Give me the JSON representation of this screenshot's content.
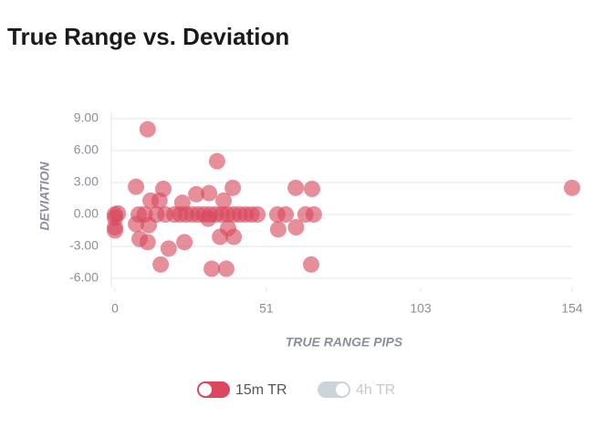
{
  "chart_data": {
    "type": "scatter",
    "title": "True Range vs. Deviation",
    "xlabel": "TRUE RANGE PIPS",
    "ylabel": "DEVIATION",
    "xlim": [
      0,
      154
    ],
    "xticks": [
      0,
      51,
      103,
      154
    ],
    "ylim": [
      -6,
      9
    ],
    "yticks": [
      {
        "value": 9,
        "label": "9.00"
      },
      {
        "value": 6,
        "label": "6.00"
      },
      {
        "value": 3,
        "label": "3.00"
      },
      {
        "value": 0,
        "label": "0.00"
      },
      {
        "value": -3,
        "label": "-3.00"
      },
      {
        "value": -6,
        "label": "-6.00"
      }
    ],
    "grid": true,
    "series": [
      {
        "name": "15m TR",
        "color": "#d9485e",
        "visible": true,
        "x": [
          0,
          0,
          0,
          0,
          1,
          11,
          34.4,
          7.1,
          16.3,
          31.7,
          39.7,
          60.9,
          66.4,
          154,
          27.4,
          36.6,
          12,
          15,
          22.7,
          8,
          10,
          14,
          17,
          20,
          22,
          24,
          26,
          28,
          30,
          32,
          34,
          36,
          38,
          40,
          42,
          44,
          46,
          48,
          54.7,
          57.5,
          64.2,
          67,
          7.1,
          8.3,
          11,
          23.4,
          18.1,
          15.4,
          32.6,
          37.5,
          66.1,
          35.4,
          40,
          55,
          61,
          11.4,
          31.4,
          38.1
        ],
        "values": [
          0,
          -0.3,
          -1.2,
          -1.5,
          0.1,
          8,
          5,
          2.6,
          2.4,
          2,
          2.5,
          2.5,
          2.4,
          2.5,
          1.9,
          1.3,
          1.3,
          1.3,
          1.1,
          0,
          0,
          0,
          0,
          0,
          0,
          0,
          0,
          0,
          0,
          0,
          0,
          0,
          0,
          0,
          0,
          0,
          0,
          0,
          0,
          0,
          0,
          0,
          -0.9,
          -2.3,
          -2.6,
          -2.6,
          -3.2,
          -4.7,
          -5.1,
          -5.1,
          -4.7,
          -2.1,
          -2.1,
          -1.4,
          -1.2,
          -1,
          -0.4,
          -1.3
        ]
      },
      {
        "name": "4h TR",
        "color": "#ccd3db",
        "visible": false,
        "x": [],
        "values": []
      }
    ]
  }
}
